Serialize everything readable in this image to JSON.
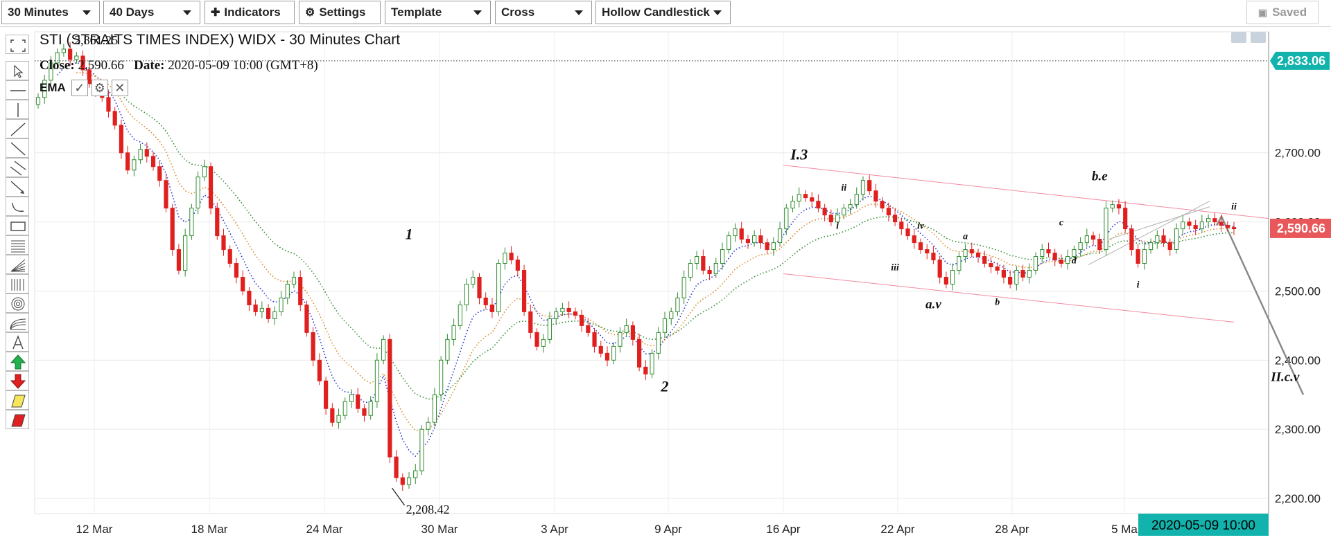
{
  "toolbar": {
    "interval": "30 Minutes",
    "range": "40 Days",
    "indicators": "Indicators",
    "settings": "Settings",
    "template": "Template",
    "cursor": "Cross",
    "chart_type": "Hollow Candlestick",
    "saved": "Saved"
  },
  "colors": {
    "up": "#2e8b2e",
    "down": "#e0201f",
    "price_tag": "#e8575a",
    "high_tag": "#12b3ac",
    "channel": "#f28aa0",
    "ema_fast": "#2233cc",
    "ema_mid": "#2e8b2e",
    "ema_slow": "#2e8b2e"
  },
  "header": {
    "title": "STI (STRAITS TIMES INDEX) WIDX - 30 Minutes Chart",
    "close_label": "Close:",
    "close_value": "2,590.66",
    "date_label": "Date:",
    "date_value": "2020-05-09 10:00 (GMT+8)",
    "ema_label": "EMA"
  },
  "sidebar_tools": [
    "fullscreen-icon",
    "pointer-icon",
    "horizontal-line-icon",
    "vertical-line-icon",
    "trend-line-icon",
    "ray-icon",
    "parallel-channel-icon",
    "arrow-line-icon",
    "arc-icon",
    "rectangle-icon",
    "fib-retracement-icon",
    "fan-icon",
    "fib-timezone-icon",
    "fib-circle-icon",
    "fib-arc-icon",
    "text-icon",
    "buy-arrow-icon",
    "sell-arrow-icon",
    "pencil-icon",
    "eraser-icon"
  ],
  "chart_data": {
    "type": "candlestick",
    "x_tick_labels": [
      "12 Mar",
      "18 Mar",
      "24 Mar",
      "30 Mar",
      "3 Apr",
      "9 Apr",
      "16 Apr",
      "22 Apr",
      "28 Apr",
      "5 Ma"
    ],
    "y_ticks": [
      "2,200.00",
      "2,300.00",
      "2,400.00",
      "2,500.00",
      "2,600.00",
      "2,700.00"
    ],
    "ylim": [
      2178,
      2875
    ],
    "last_price": "2,590.66",
    "high_line": "2,833.06",
    "cursor_time": "2020-05-09 10:00",
    "high_label": "2,861.25",
    "low_label": "2,208.42",
    "closes": [
      2780,
      2805,
      2830,
      2845,
      2850,
      2835,
      2840,
      2820,
      2800,
      2790,
      2780,
      2760,
      2740,
      2700,
      2675,
      2690,
      2705,
      2695,
      2680,
      2660,
      2620,
      2560,
      2530,
      2580,
      2620,
      2665,
      2680,
      2620,
      2580,
      2560,
      2540,
      2520,
      2500,
      2480,
      2470,
      2475,
      2460,
      2470,
      2490,
      2510,
      2520,
      2480,
      2440,
      2400,
      2370,
      2330,
      2310,
      2320,
      2340,
      2350,
      2330,
      2320,
      2340,
      2400,
      2430,
      2260,
      2230,
      2220,
      2230,
      2240,
      2300,
      2310,
      2350,
      2400,
      2430,
      2450,
      2480,
      2510,
      2520,
      2490,
      2480,
      2470,
      2540,
      2555,
      2545,
      2530,
      2470,
      2440,
      2420,
      2430,
      2460,
      2470,
      2475,
      2470,
      2465,
      2450,
      2440,
      2420,
      2410,
      2400,
      2420,
      2440,
      2450,
      2430,
      2390,
      2380,
      2410,
      2440,
      2460,
      2470,
      2490,
      2520,
      2540,
      2550,
      2530,
      2525,
      2540,
      2560,
      2580,
      2590,
      2575,
      2570,
      2580,
      2570,
      2560,
      2570,
      2590,
      2620,
      2630,
      2640,
      2635,
      2630,
      2620,
      2610,
      2600,
      2610,
      2620,
      2625,
      2640,
      2660,
      2645,
      2630,
      2620,
      2610,
      2600,
      2590,
      2580,
      2570,
      2560,
      2555,
      2545,
      2520,
      2510,
      2530,
      2550,
      2560,
      2555,
      2550,
      2540,
      2535,
      2530,
      2520,
      2510,
      2530,
      2520,
      2530,
      2550,
      2560,
      2555,
      2545,
      2540,
      2550,
      2560,
      2570,
      2580,
      2575,
      2560,
      2620,
      2625,
      2620,
      2590,
      2560,
      2540,
      2560,
      2570,
      2580,
      2570,
      2560,
      2590,
      2600,
      2595,
      2590,
      2600,
      2605,
      2600,
      2595,
      2592,
      2590
    ],
    "labels": [
      {
        "text": "1",
        "i": 58,
        "price": 2575,
        "style": "big"
      },
      {
        "text": "2",
        "i": 98,
        "price": 2355,
        "style": "big"
      },
      {
        "text": "I.3",
        "i": 119,
        "price": 2690,
        "style": "big"
      },
      {
        "text": "ii",
        "i": 126,
        "price": 2645,
        "style": "small"
      },
      {
        "text": "i",
        "i": 125,
        "price": 2590,
        "style": "small"
      },
      {
        "text": "iii",
        "i": 134,
        "price": 2530,
        "style": "small"
      },
      {
        "text": "iv",
        "i": 138,
        "price": 2590,
        "style": "small"
      },
      {
        "text": "a.v",
        "i": 140,
        "price": 2475,
        "style": "mid"
      },
      {
        "text": "a",
        "i": 145,
        "price": 2575,
        "style": "small"
      },
      {
        "text": "b",
        "i": 150,
        "price": 2480,
        "style": "small"
      },
      {
        "text": "c",
        "i": 160,
        "price": 2595,
        "style": "small"
      },
      {
        "text": "d",
        "i": 162,
        "price": 2540,
        "style": "small"
      },
      {
        "text": "b.e",
        "i": 166,
        "price": 2660,
        "style": "mid"
      },
      {
        "text": "i",
        "i": 172,
        "price": 2505,
        "style": "small"
      },
      {
        "text": "ii",
        "i": 187,
        "price": 2618,
        "style": "small"
      },
      {
        "text": "II.c.v",
        "i": 195,
        "price": 2370,
        "style": "mid"
      }
    ]
  }
}
